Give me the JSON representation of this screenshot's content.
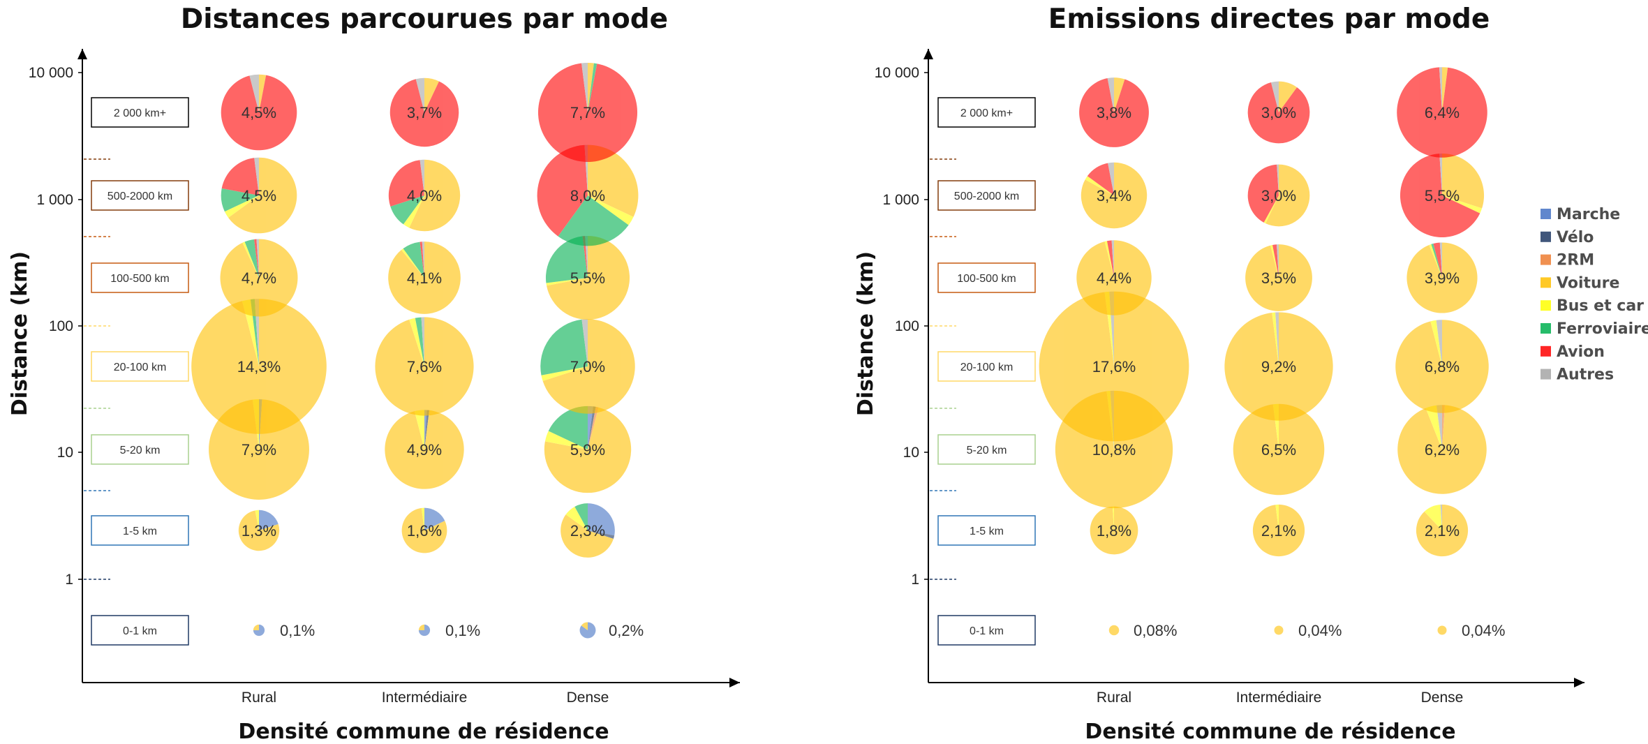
{
  "colors": {
    "modes": {
      "Marche": "#4472C4",
      "Vélo": "#1F3864",
      "2RM": "#ED7D31",
      "Voiture": "#FFC000",
      "Bus et car": "#FFFF00",
      "Ferroviaire": "#00B050",
      "Avion": "#FF0000",
      "Autres": "#A6A6A6"
    },
    "bands": [
      "#1F3864",
      "#2E75B6",
      "#A9D18E",
      "#FFD966",
      "#C55A11",
      "#843C0C",
      "#000000"
    ]
  },
  "legend": [
    "Marche",
    "Vélo",
    "2RM",
    "Voiture",
    "Bus et car",
    "Ferroviaire",
    "Avion",
    "Autres"
  ],
  "chart_data": [
    {
      "type": "pie",
      "title": "Distances parcourues par mode",
      "xlabel": "Densité commune de résidence",
      "ylabel": "Distance (km)",
      "y_scale": "log",
      "y_ticks": [
        "1",
        "10",
        "100",
        "1 000",
        "10 000"
      ],
      "categories": [
        "Rural",
        "Intermédiaire",
        "Dense"
      ],
      "distance_bands": [
        "0-1 km",
        "1-5 km",
        "5-20 km",
        "20-100 km",
        "100-500 km",
        "500-2000 km",
        "2 000 km+"
      ],
      "share_labels": [
        [
          "0,1%",
          "0,1%",
          "0,2%"
        ],
        [
          "1,3%",
          "1,6%",
          "2,3%"
        ],
        [
          "7,9%",
          "4,9%",
          "5,9%"
        ],
        [
          "14,3%",
          "7,6%",
          "7,0%"
        ],
        [
          "4,7%",
          "4,1%",
          "5,5%"
        ],
        [
          "4,5%",
          "4,0%",
          "8,0%"
        ],
        [
          "4,5%",
          "3,7%",
          "7,7%"
        ]
      ],
      "shares": [
        [
          0.1,
          0.1,
          0.2
        ],
        [
          1.3,
          1.6,
          2.3
        ],
        [
          7.9,
          4.9,
          5.9
        ],
        [
          14.3,
          7.6,
          7.0
        ],
        [
          4.7,
          4.1,
          5.5
        ],
        [
          4.5,
          4.0,
          8.0
        ],
        [
          4.5,
          3.7,
          7.7
        ]
      ],
      "mode_split": [
        [
          {
            "Marche": 75,
            "Voiture": 25
          },
          {
            "Marche": 75,
            "Voiture": 25
          },
          {
            "Marche": 85,
            "Voiture": 15
          }
        ],
        [
          {
            "Marche": 20,
            "Voiture": 77,
            "Bus et car": 3
          },
          {
            "Marche": 18,
            "Voiture": 80,
            "Bus et car": 2
          },
          {
            "Marche": 28,
            "Vélo": 2,
            "Voiture": 55,
            "Bus et car": 7,
            "Ferroviaire": 8
          }
        ],
        [
          {
            "Marche": 1,
            "Voiture": 97,
            "Bus et car": 2
          },
          {
            "Marche": 1,
            "Vélo": 1,
            "Voiture": 94,
            "Bus et car": 4
          },
          {
            "Marche": 2,
            "Vélo": 1,
            "2RM": 1,
            "Voiture": 74,
            "Bus et car": 4,
            "Ferroviaire": 18
          }
        ],
        [
          {
            "Voiture": 96,
            "Bus et car": 2,
            "Ferroviaire": 1,
            "Autres": 1
          },
          {
            "Voiture": 95,
            "Bus et car": 2,
            "Ferroviaire": 2,
            "Autres": 1
          },
          {
            "Voiture": 70,
            "Bus et car": 2,
            "Ferroviaire": 26,
            "Autres": 2
          }
        ],
        [
          {
            "Voiture": 93,
            "Bus et car": 1,
            "Ferroviaire": 4,
            "Avion": 1,
            "Autres": 1
          },
          {
            "Voiture": 89,
            "Bus et car": 1,
            "Ferroviaire": 8,
            "Avion": 1,
            "Autres": 1
          },
          {
            "Voiture": 72,
            "Bus et car": 1,
            "Ferroviaire": 25,
            "Avion": 1,
            "Autres": 1
          }
        ],
        [
          {
            "Voiture": 65,
            "Bus et car": 3,
            "Ferroviaire": 10,
            "Avion": 20,
            "Autres": 2
          },
          {
            "Voiture": 57,
            "Bus et car": 3,
            "Ferroviaire": 10,
            "Avion": 28,
            "Autres": 2
          },
          {
            "Voiture": 32,
            "Bus et car": 3,
            "Ferroviaire": 25,
            "Avion": 39,
            "Autres": 1
          }
        ],
        [
          {
            "Voiture": 3,
            "Avion": 93,
            "Autres": 4
          },
          {
            "Voiture": 7,
            "Avion": 89,
            "Autres": 4
          },
          {
            "Voiture": 2,
            "Ferroviaire": 1,
            "Avion": 95,
            "Autres": 2
          }
        ]
      ]
    },
    {
      "type": "pie",
      "title": "Emissions directes par mode",
      "xlabel": "Densité commune de résidence",
      "ylabel": "Distance (km)",
      "y_scale": "log",
      "y_ticks": [
        "1",
        "10",
        "100",
        "1 000",
        "10 000"
      ],
      "categories": [
        "Rural",
        "Intermédiaire",
        "Dense"
      ],
      "distance_bands": [
        "0-1 km",
        "1-5 km",
        "5-20 km",
        "20-100 km",
        "100-500 km",
        "500-2000 km",
        "2 000 km+"
      ],
      "share_labels": [
        [
          "0,08%",
          "0,04%",
          "0,04%"
        ],
        [
          "1,8%",
          "2,1%",
          "2,1%"
        ],
        [
          "10,8%",
          "6,5%",
          "6,2%"
        ],
        [
          "17,6%",
          "9,2%",
          "6,8%"
        ],
        [
          "4,4%",
          "3,5%",
          "3,9%"
        ],
        [
          "3,4%",
          "3,0%",
          "5,5%"
        ],
        [
          "3,8%",
          "3,0%",
          "6,4%"
        ]
      ],
      "shares": [
        [
          0.08,
          0.04,
          0.04
        ],
        [
          1.8,
          2.1,
          2.1
        ],
        [
          10.8,
          6.5,
          6.2
        ],
        [
          17.6,
          9.2,
          6.8
        ],
        [
          4.4,
          3.5,
          3.9
        ],
        [
          3.4,
          3.0,
          5.5
        ],
        [
          3.8,
          3.0,
          6.4
        ]
      ],
      "mode_split": [
        [
          {
            "Voiture": 100
          },
          {
            "Voiture": 100
          },
          {
            "Voiture": 100
          }
        ],
        [
          {
            "Voiture": 99,
            "Bus et car": 1
          },
          {
            "Voiture": 98,
            "Bus et car": 2
          },
          {
            "Voiture": 88,
            "Bus et car": 11,
            "Autres": 1
          }
        ],
        [
          {
            "Voiture": 98,
            "Bus et car": 1,
            "Autres": 1
          },
          {
            "Voiture": 98,
            "Bus et car": 2
          },
          {
            "Voiture": 93,
            "Bus et car": 4,
            "2RM": 1,
            "Autres": 2
          }
        ],
        [
          {
            "Voiture": 98,
            "Bus et car": 1,
            "Autres": 1
          },
          {
            "Voiture": 98,
            "Bus et car": 1,
            "Autres": 1
          },
          {
            "Voiture": 96,
            "Bus et car": 2,
            "Autres": 2
          }
        ],
        [
          {
            "Voiture": 96,
            "Bus et car": 1,
            "Avion": 2,
            "Autres": 1
          },
          {
            "Voiture": 96,
            "Bus et car": 1,
            "Avion": 2,
            "Autres": 1
          },
          {
            "Voiture": 94,
            "Bus et car": 1,
            "Ferroviaire": 1,
            "Avion": 3,
            "Autres": 1
          }
        ],
        [
          {
            "Voiture": 83,
            "Bus et car": 2,
            "Avion": 12,
            "Autres": 3
          },
          {
            "Voiture": 57,
            "Bus et car": 1,
            "Avion": 41,
            "Autres": 1
          },
          {
            "Voiture": 30,
            "Bus et car": 2,
            "Avion": 67,
            "Autres": 1
          }
        ],
        [
          {
            "Voiture": 5,
            "Avion": 92,
            "Autres": 3
          },
          {
            "Voiture": 10,
            "Avion": 86,
            "Autres": 4
          },
          {
            "Voiture": 2,
            "Avion": 97,
            "Autres": 1
          }
        ]
      ]
    }
  ]
}
